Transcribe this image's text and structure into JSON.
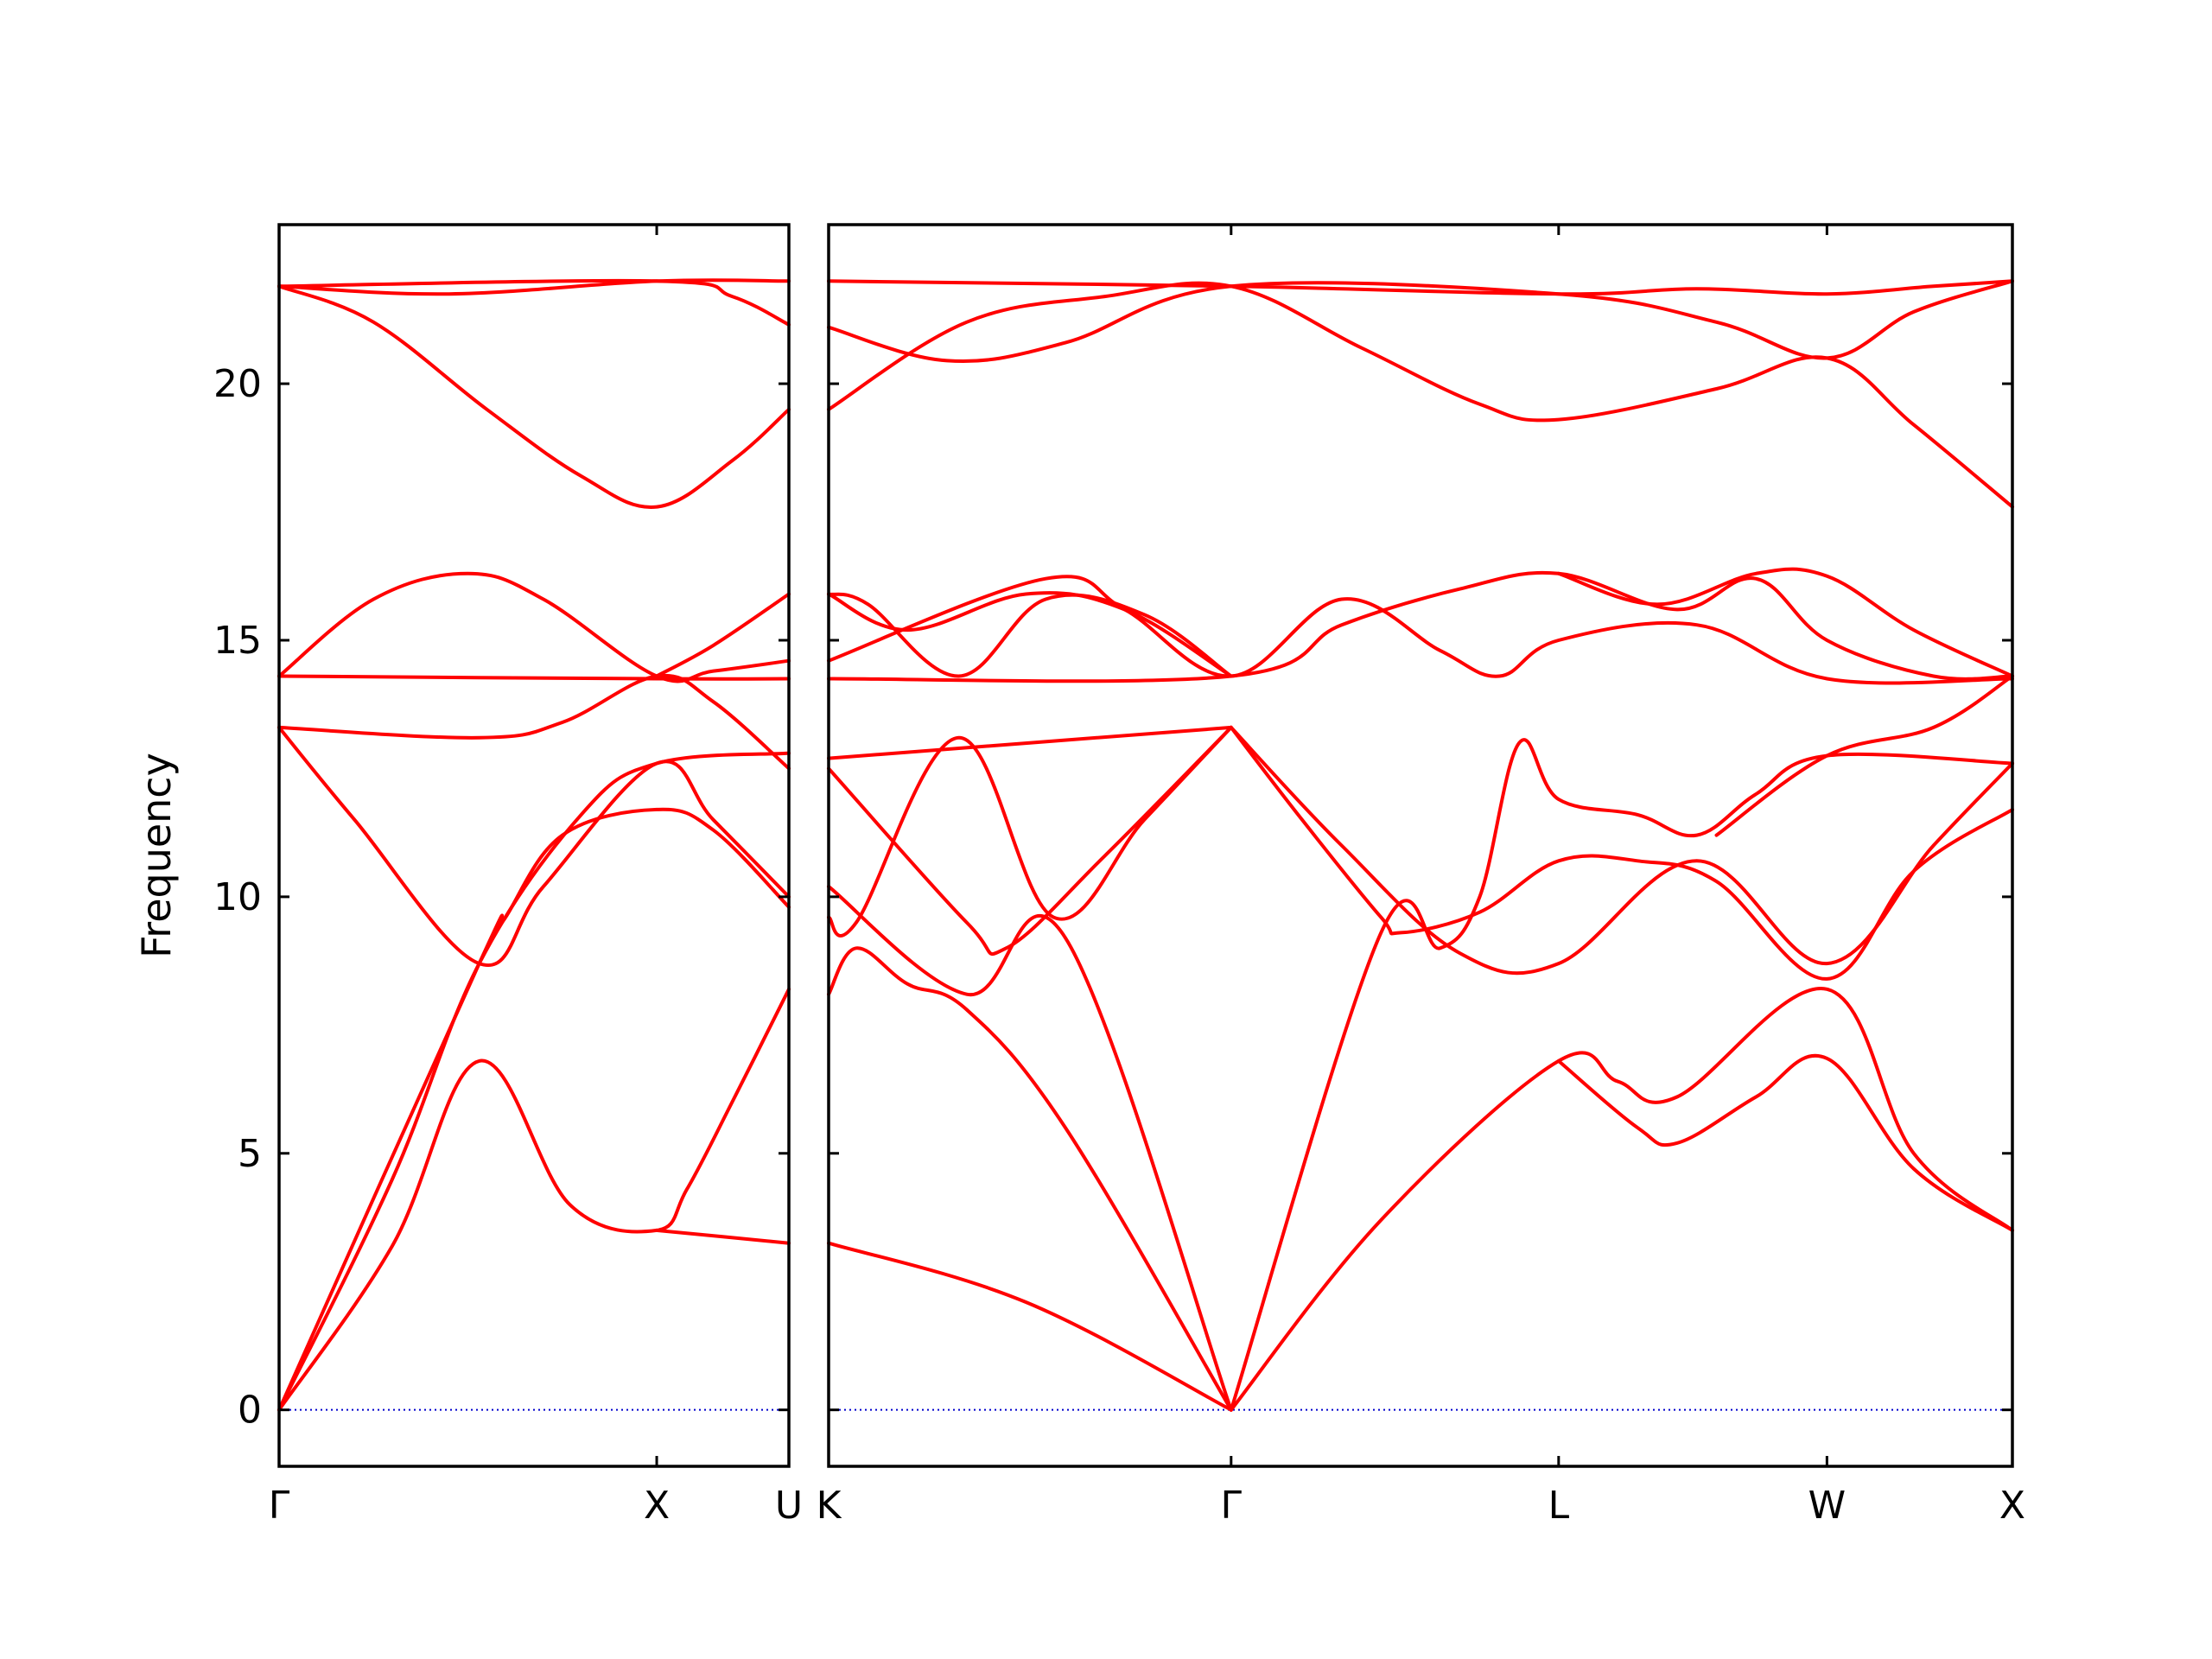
{
  "chart_data": {
    "type": "line",
    "ylabel": "Frequency",
    "ylim": [
      -1.1,
      23.1
    ],
    "yticks": [
      0,
      5,
      10,
      15,
      20
    ],
    "panels": [
      {
        "x_range": [
          0,
          1.35
        ],
        "xticks": [
          {
            "x": 0,
            "label": "Γ"
          },
          {
            "x": 1.0,
            "label": "X"
          },
          {
            "x": 1.35,
            "label": "U"
          }
        ],
        "series": [
          {
            "values": [
              [
                0,
                0
              ],
              [
                0.3,
                3.2
              ],
              [
                0.53,
                6.8
              ],
              [
                0.77,
                4.0
              ],
              [
                1.0,
                3.5
              ],
              [
                1.08,
                4.3
              ],
              [
                1.2,
                6.0
              ],
              [
                1.35,
                8.2
              ]
            ]
          },
          {
            "values": [
              [
                0,
                0
              ],
              [
                0.53,
                8.7
              ],
              [
                0.6,
                9.6
              ],
              [
                0.75,
                11.2
              ],
              [
                1.0,
                11.7
              ],
              [
                1.15,
                11.3
              ],
              [
                1.35,
                9.8
              ]
            ]
          },
          {
            "values": [
              [
                0,
                0
              ],
              [
                0.3,
                4.5
              ],
              [
                0.53,
                8.7
              ],
              [
                0.8,
                11.6
              ],
              [
                1.0,
                12.6
              ],
              [
                1.35,
                12.8
              ]
            ]
          },
          {
            "values": [
              [
                1.0,
                3.5
              ],
              [
                1.35,
                3.25
              ]
            ]
          },
          {
            "values": [
              [
                0,
                13.3
              ],
              [
                0.2,
                11.5
              ],
              [
                0.53,
                8.7
              ],
              [
                0.7,
                10.2
              ],
              [
                1.0,
                12.6
              ],
              [
                1.15,
                11.5
              ],
              [
                1.35,
                10.0
              ]
            ]
          },
          {
            "values": [
              [
                0,
                13.3
              ],
              [
                0.53,
                13.1
              ],
              [
                0.75,
                13.4
              ],
              [
                1.0,
                14.3
              ],
              [
                1.15,
                13.8
              ],
              [
                1.35,
                12.5
              ]
            ]
          },
          {
            "values": [
              [
                0,
                14.3
              ],
              [
                1.0,
                14.25
              ],
              [
                1.35,
                14.25
              ]
            ]
          },
          {
            "values": [
              [
                0,
                14.3
              ],
              [
                0.25,
                15.8
              ],
              [
                0.5,
                16.3
              ],
              [
                0.7,
                15.8
              ],
              [
                1.0,
                14.3
              ],
              [
                1.15,
                14.4
              ],
              [
                1.35,
                14.6
              ]
            ]
          },
          {
            "values": [
              [
                1.0,
                14.3
              ],
              [
                1.15,
                14.9
              ],
              [
                1.35,
                15.9
              ]
            ]
          },
          {
            "values": [
              [
                0,
                21.9
              ],
              [
                0.25,
                21.2
              ],
              [
                0.55,
                19.5
              ],
              [
                0.8,
                18.2
              ],
              [
                1.0,
                17.6
              ],
              [
                1.2,
                18.5
              ],
              [
                1.35,
                19.5
              ]
            ]
          },
          {
            "values": [
              [
                0,
                21.9
              ],
              [
                0.45,
                21.75
              ],
              [
                1.0,
                22.0
              ],
              [
                1.35,
                22.0
              ]
            ]
          },
          {
            "values": [
              [
                0,
                21.9
              ],
              [
                1.0,
                22.0
              ],
              [
                1.2,
                21.7
              ],
              [
                1.35,
                21.15
              ]
            ]
          }
        ]
      },
      {
        "x_range": [
          0,
          3.0
        ],
        "xticks": [
          {
            "x": 0,
            "label": "K"
          },
          {
            "x": 1.02,
            "label": "Γ"
          },
          {
            "x": 1.85,
            "label": "L"
          },
          {
            "x": 2.53,
            "label": "W"
          },
          {
            "x": 3.0,
            "label": "X"
          }
        ],
        "series": [
          {
            "values": [
              [
                0,
                3.25
              ],
              [
                0.5,
                2.1
              ],
              [
                1.02,
                0
              ]
            ]
          },
          {
            "values": [
              [
                0,
                8.1
              ],
              [
                0.07,
                9.0
              ],
              [
                0.2,
                8.3
              ],
              [
                0.35,
                7.8
              ],
              [
                0.6,
                5.5
              ],
              [
                1.02,
                0
              ]
            ]
          },
          {
            "values": [
              [
                0,
                10.2
              ],
              [
                0.35,
                8.1
              ],
              [
                0.6,
                9.2
              ],
              [
                1.02,
                0
              ]
            ]
          },
          {
            "values": [
              [
                0,
                9.6
              ],
              [
                0.07,
                9.5
              ],
              [
                0.33,
                13.1
              ],
              [
                0.57,
                9.6
              ],
              [
                0.8,
                11.5
              ],
              [
                1.02,
                13.3
              ]
            ]
          },
          {
            "values": [
              [
                0,
                12.5
              ],
              [
                0.35,
                9.5
              ],
              [
                0.45,
                9.0
              ],
              [
                0.7,
                10.8
              ],
              [
                1.02,
                13.3
              ]
            ]
          },
          {
            "values": [
              [
                0,
                12.7
              ],
              [
                1.02,
                13.3
              ]
            ]
          },
          {
            "values": [
              [
                1.02,
                13.3
              ],
              [
                1.3,
                11.0
              ],
              [
                1.6,
                8.9
              ],
              [
                1.85,
                8.7
              ],
              [
                2.2,
                10.7
              ],
              [
                2.53,
                8.7
              ],
              [
                2.8,
                11.0
              ],
              [
                3.0,
                12.6
              ]
            ]
          },
          {
            "values": [
              [
                1.02,
                13.3
              ],
              [
                1.2,
                11.5
              ],
              [
                1.4,
                9.6
              ],
              [
                1.45,
                9.3
              ],
              [
                1.65,
                9.7
              ],
              [
                1.85,
                10.7
              ],
              [
                2.05,
                10.7
              ],
              [
                2.25,
                10.3
              ],
              [
                2.53,
                8.4
              ],
              [
                2.75,
                10.5
              ],
              [
                3.0,
                11.7
              ]
            ]
          },
          {
            "values": [
              [
                1.02,
                0
              ],
              [
                1.4,
                9.3
              ],
              [
                1.55,
                9.0
              ],
              [
                1.65,
                10.0
              ],
              [
                1.75,
                13.0
              ],
              [
                1.85,
                11.9
              ],
              [
                2.05,
                11.6
              ],
              [
                2.2,
                11.2
              ],
              [
                2.35,
                12.0
              ],
              [
                2.53,
                12.75
              ],
              [
                3.0,
                12.6
              ]
            ]
          },
          {
            "values": [
              [
                1.02,
                0
              ],
              [
                1.4,
                3.7
              ],
              [
                1.85,
                6.8
              ],
              [
                2.0,
                6.4
              ],
              [
                2.15,
                6.1
              ],
              [
                2.53,
                8.2
              ],
              [
                2.75,
                5.0
              ],
              [
                3.0,
                3.5
              ]
            ]
          },
          {
            "values": [
              [
                1.85,
                6.8
              ],
              [
                2.05,
                5.5
              ],
              [
                2.15,
                5.2
              ],
              [
                2.35,
                6.1
              ],
              [
                2.53,
                6.85
              ],
              [
                2.75,
                4.7
              ],
              [
                3.0,
                3.5
              ]
            ]
          },
          {
            "values": [
              [
                2.25,
                11.2
              ],
              [
                2.53,
                12.75
              ],
              [
                2.8,
                13.3
              ],
              [
                3.0,
                14.3
              ]
            ]
          },
          {
            "values": [
              [
                0,
                14.25
              ],
              [
                1.02,
                14.3
              ],
              [
                1.3,
                15.3
              ],
              [
                1.6,
                16.0
              ],
              [
                1.85,
                16.3
              ],
              [
                2.15,
                15.6
              ],
              [
                2.35,
                16.2
              ],
              [
                2.53,
                15.0
              ],
              [
                2.8,
                14.3
              ],
              [
                3.0,
                14.3
              ]
            ]
          },
          {
            "values": [
              [
                0,
                14.6
              ],
              [
                0.55,
                16.2
              ],
              [
                0.75,
                15.6
              ],
              [
                1.02,
                14.3
              ],
              [
                1.3,
                15.8
              ],
              [
                1.55,
                14.8
              ],
              [
                1.7,
                14.3
              ],
              [
                1.85,
                15.0
              ],
              [
                2.2,
                15.3
              ],
              [
                2.53,
                14.25
              ],
              [
                3.0,
                14.25
              ]
            ]
          },
          {
            "values": [
              [
                0,
                15.9
              ],
              [
                0.1,
                15.7
              ],
              [
                0.33,
                14.3
              ],
              [
                0.55,
                15.8
              ],
              [
                0.8,
                15.5
              ],
              [
                1.02,
                14.3
              ]
            ]
          },
          {
            "values": [
              [
                0,
                15.9
              ],
              [
                0.2,
                15.2
              ],
              [
                0.5,
                15.9
              ],
              [
                0.75,
                15.6
              ],
              [
                1.02,
                14.3
              ]
            ]
          },
          {
            "values": [
              [
                1.85,
                16.3
              ],
              [
                2.1,
                15.7
              ],
              [
                2.35,
                16.3
              ],
              [
                2.53,
                16.25
              ],
              [
                2.75,
                15.2
              ],
              [
                3.0,
                14.3
              ]
            ]
          },
          {
            "values": [
              [
                0,
                19.5
              ],
              [
                0.35,
                21.2
              ],
              [
                0.7,
                21.7
              ],
              [
                1.02,
                21.9
              ],
              [
                1.35,
                20.7
              ],
              [
                1.65,
                19.6
              ],
              [
                1.85,
                19.3
              ],
              [
                2.25,
                19.9
              ],
              [
                2.53,
                20.5
              ],
              [
                2.75,
                19.2
              ],
              [
                3.0,
                17.6
              ]
            ]
          },
          {
            "values": [
              [
                0,
                21.1
              ],
              [
                0.3,
                20.45
              ],
              [
                0.6,
                20.8
              ],
              [
                1.02,
                21.9
              ],
              [
                1.85,
                21.75
              ],
              [
                2.25,
                21.2
              ],
              [
                2.53,
                20.5
              ],
              [
                2.75,
                21.4
              ],
              [
                3.0,
                22.0
              ]
            ]
          },
          {
            "values": [
              [
                0,
                22.0
              ],
              [
                1.02,
                21.9
              ],
              [
                1.85,
                21.75
              ],
              [
                2.2,
                21.85
              ],
              [
                2.53,
                21.75
              ],
              [
                2.8,
                21.9
              ],
              [
                3.0,
                22.0
              ]
            ]
          }
        ]
      }
    ],
    "zero_line_color": "#0000cc",
    "band_color": "#ff0000"
  }
}
